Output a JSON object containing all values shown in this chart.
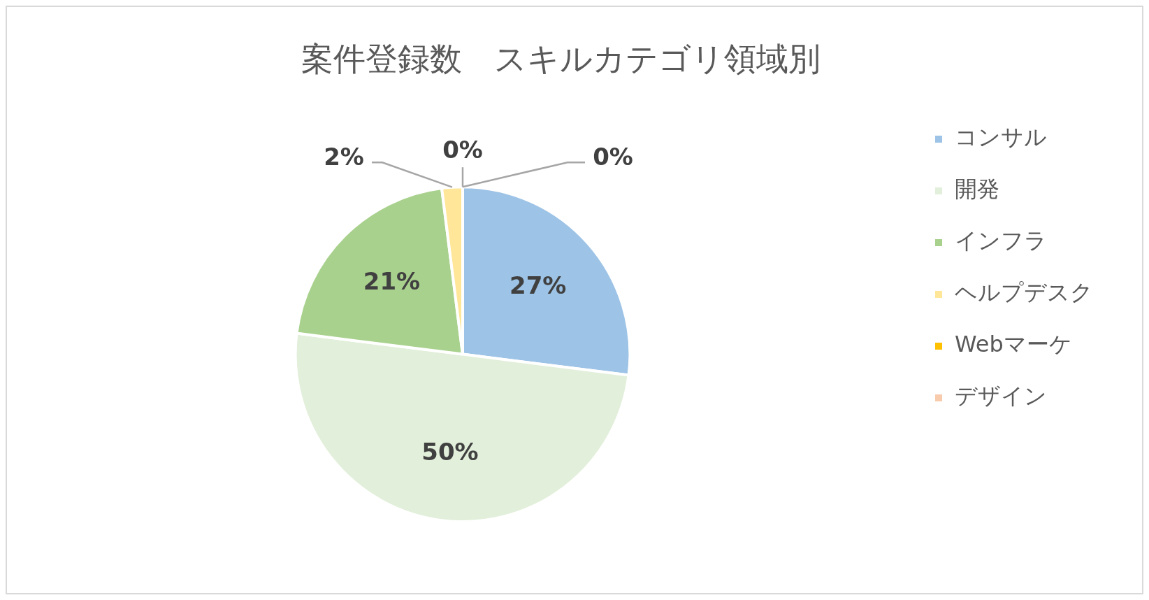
{
  "chart_data": {
    "type": "pie",
    "title": "案件登録数　スキルカテゴリ領域別",
    "categories": [
      "コンサル",
      "開発",
      "インフラ",
      "ヘルプデスク",
      "Webマーケ",
      "デザイン"
    ],
    "values": [
      27,
      50,
      21,
      2,
      0,
      0
    ],
    "colors": [
      "#9dc3e6",
      "#e2efda",
      "#a9d18e",
      "#ffe699",
      "#ffc000",
      "#f8cbad"
    ],
    "value_labels": [
      "27%",
      "50%",
      "21%",
      "2%",
      "0%",
      "0%"
    ],
    "legend": "right"
  }
}
